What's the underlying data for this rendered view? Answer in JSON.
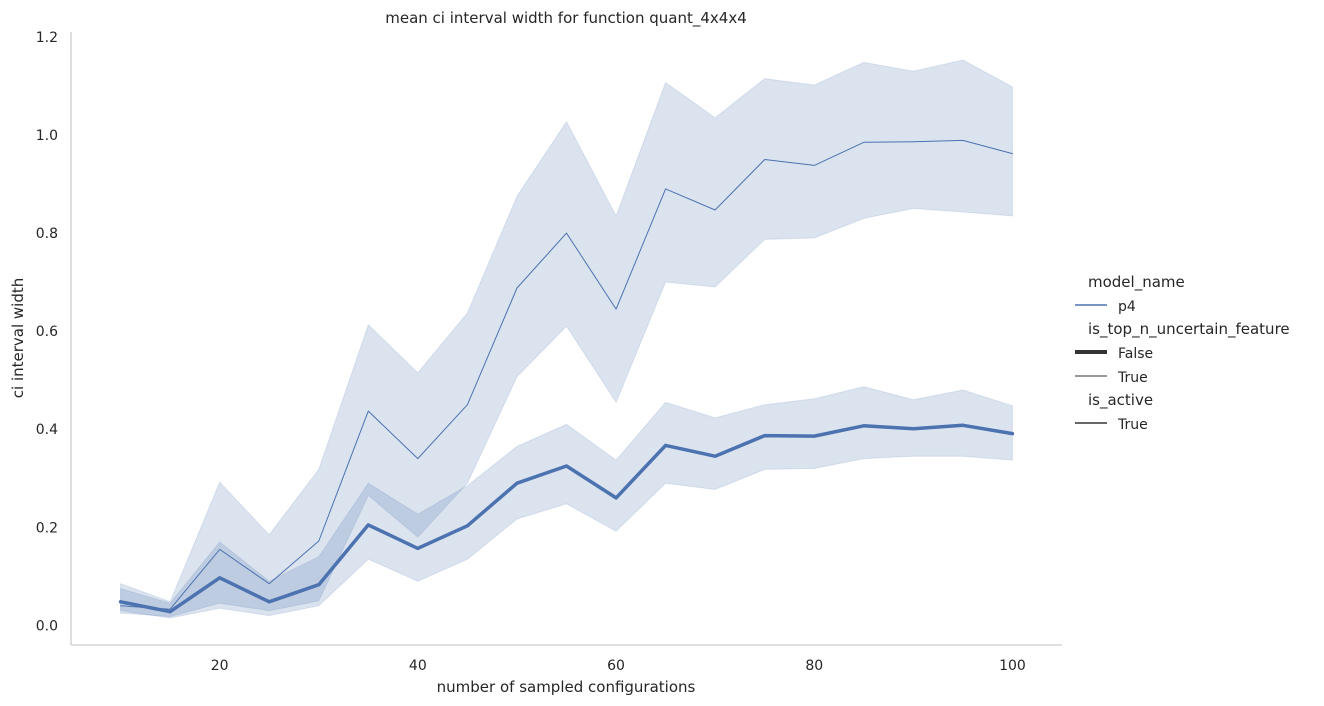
{
  "chart_data": {
    "type": "line",
    "title": "mean ci interval width for function quant_4x4x4",
    "xlabel": "number of sampled configurations",
    "ylabel": "ci interval width",
    "xlim": [
      5,
      105
    ],
    "ylim": [
      -0.04,
      1.21
    ],
    "xticks": [
      20,
      40,
      60,
      80,
      100
    ],
    "yticks": [
      0.0,
      0.2,
      0.4,
      0.6,
      0.8,
      1.0,
      1.2
    ],
    "ytick_labels": [
      "0.0",
      "0.2",
      "0.4",
      "0.6",
      "0.8",
      "1.0",
      "1.2"
    ],
    "grid": false,
    "legend_position": "right",
    "color": "#4c72b0",
    "x": [
      10,
      15,
      20,
      25,
      30,
      35,
      40,
      45,
      50,
      55,
      60,
      65,
      70,
      75,
      80,
      85,
      90,
      95,
      100
    ],
    "series": [
      {
        "label": "True",
        "is_top_n_uncertain_feature": "True",
        "values": [
          0.04,
          0.033,
          0.155,
          0.085,
          0.172,
          0.437,
          0.34,
          0.45,
          0.688,
          0.8,
          0.645,
          0.89,
          0.847,
          0.95,
          0.938,
          0.985,
          0.986,
          0.989,
          0.962
        ],
        "ci_lower": [
          0.025,
          0.018,
          0.045,
          0.03,
          0.05,
          0.265,
          0.18,
          0.29,
          0.507,
          0.61,
          0.455,
          0.7,
          0.69,
          0.787,
          0.79,
          0.83,
          0.85,
          0.843,
          0.835
        ],
        "ci_upper": [
          0.085,
          0.048,
          0.292,
          0.185,
          0.318,
          0.613,
          0.515,
          0.637,
          0.875,
          1.027,
          0.835,
          1.107,
          1.035,
          1.115,
          1.102,
          1.148,
          1.13,
          1.153,
          1.098
        ]
      },
      {
        "label": "False",
        "is_top_n_uncertain_feature": "False",
        "values": [
          0.048,
          0.028,
          0.097,
          0.048,
          0.083,
          0.205,
          0.157,
          0.203,
          0.29,
          0.325,
          0.26,
          0.367,
          0.345,
          0.387,
          0.386,
          0.407,
          0.401,
          0.408,
          0.391
        ],
        "ci_lower": [
          0.03,
          0.015,
          0.035,
          0.02,
          0.04,
          0.135,
          0.09,
          0.135,
          0.217,
          0.248,
          0.192,
          0.29,
          0.277,
          0.318,
          0.32,
          0.34,
          0.345,
          0.345,
          0.337
        ],
        "ci_upper": [
          0.075,
          0.045,
          0.17,
          0.09,
          0.14,
          0.29,
          0.227,
          0.285,
          0.365,
          0.41,
          0.337,
          0.455,
          0.423,
          0.45,
          0.462,
          0.487,
          0.46,
          0.48,
          0.448
        ]
      }
    ],
    "legend": {
      "groups": [
        {
          "title": "model_name",
          "entries": [
            {
              "label": "p4",
              "style": "color"
            }
          ]
        },
        {
          "title": "is_top_n_uncertain_feature",
          "entries": [
            {
              "label": "False",
              "style": "thick"
            },
            {
              "label": "True",
              "style": "thin"
            }
          ]
        },
        {
          "title": "is_active",
          "entries": [
            {
              "label": "True",
              "style": "solid"
            }
          ]
        }
      ]
    }
  }
}
